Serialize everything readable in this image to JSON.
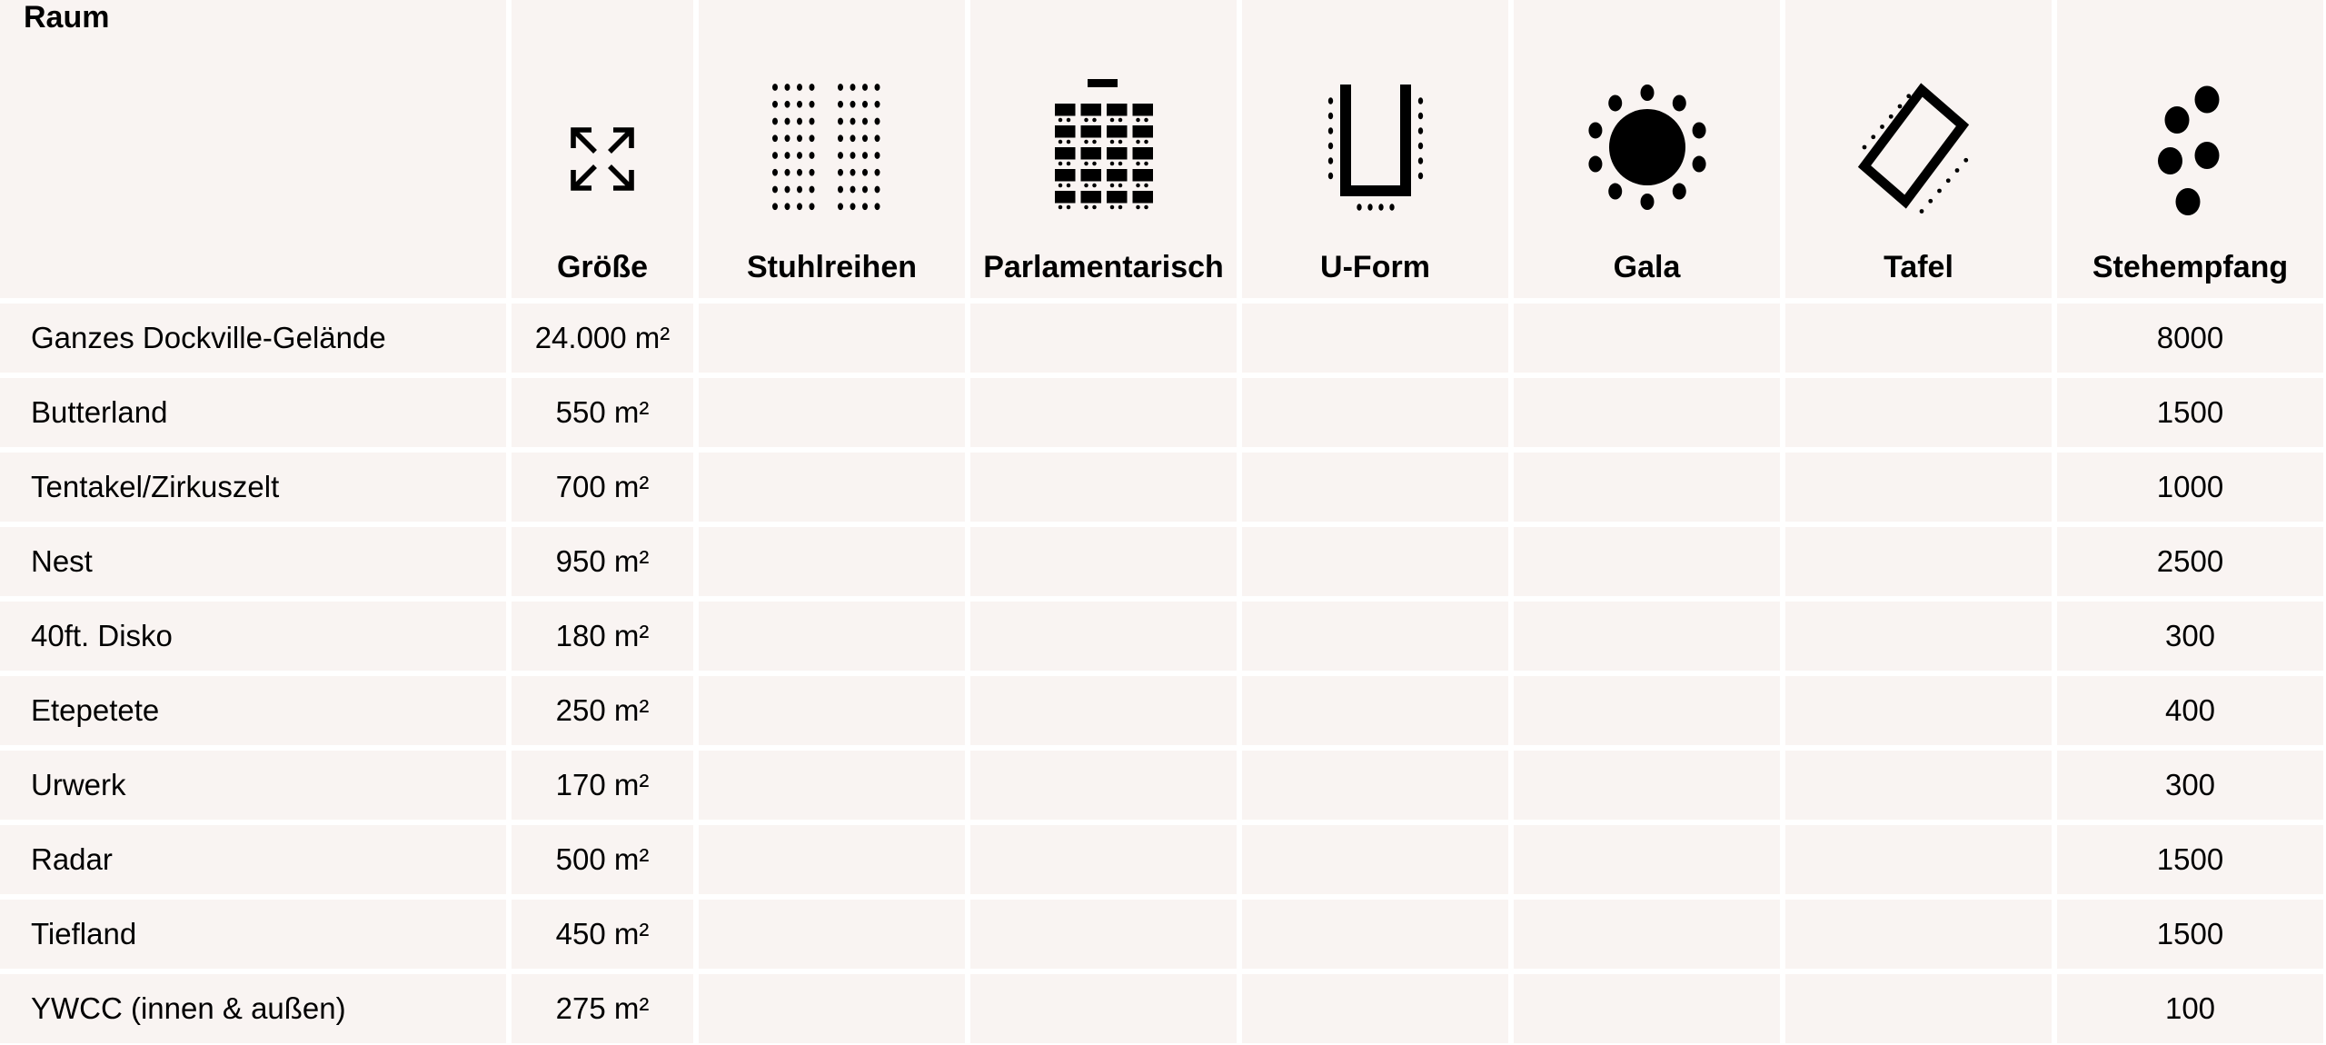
{
  "columns": [
    {
      "label": "Raum",
      "icon": ""
    },
    {
      "label": "Größe",
      "icon": "expand-arrows-icon"
    },
    {
      "label": "Stuhlreihen",
      "icon": "chair-rows-icon"
    },
    {
      "label": "Parlamentarisch",
      "icon": "parliament-tables-icon"
    },
    {
      "label": "U-Form",
      "icon": "u-shape-icon"
    },
    {
      "label": "Gala",
      "icon": "round-table-icon"
    },
    {
      "label": "Tafel",
      "icon": "banquet-table-icon"
    },
    {
      "label": "Stehempfang",
      "icon": "standing-reception-icon"
    }
  ],
  "rows": [
    {
      "raum": "Ganzes Dockville-Gelände",
      "groesse": "24.000 m²",
      "stehempfang": "8000"
    },
    {
      "raum": "Butterland",
      "groesse": "550 m²",
      "stehempfang": "1500"
    },
    {
      "raum": "Tentakel/Zirkuszelt",
      "groesse": "700 m²",
      "stehempfang": "1000"
    },
    {
      "raum": "Nest",
      "groesse": "950 m²",
      "stehempfang": "2500"
    },
    {
      "raum": "40ft. Disko",
      "groesse": "180 m²",
      "stehempfang": "300"
    },
    {
      "raum": "Etepetete",
      "groesse": "250 m²",
      "stehempfang": "400"
    },
    {
      "raum": "Urwerk",
      "groesse": "170 m²",
      "stehempfang": "300"
    },
    {
      "raum": "Radar",
      "groesse": "500 m²",
      "stehempfang": "1500"
    },
    {
      "raum": "Tiefland",
      "groesse": "450 m²",
      "stehempfang": "1500"
    },
    {
      "raum": "YWCC (innen & außen)",
      "groesse": "275 m²",
      "stehempfang": "100"
    }
  ],
  "colors": {
    "cell_bg": "#f9f4f2",
    "grid_lines": "#ffffff"
  }
}
